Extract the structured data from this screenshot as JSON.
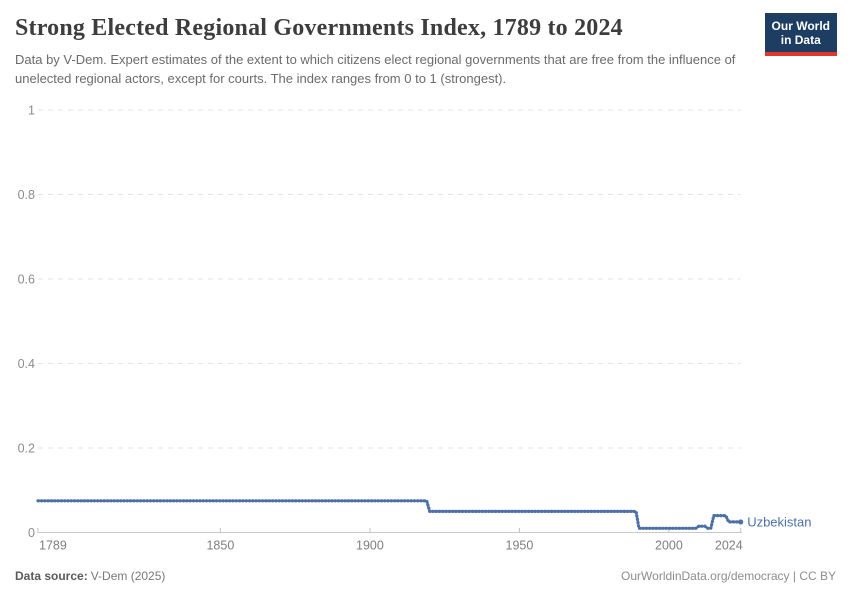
{
  "header": {
    "title": "Strong Elected Regional Governments Index, 1789 to 2024",
    "subtitle": "Data by V-Dem. Expert estimates of the extent to which citizens elect regional governments that are free from the influence of unelected regional actors, except for courts. The index ranges from 0 to 1 (strongest).",
    "logo": {
      "line1": "Our World",
      "line2": "in Data",
      "bg_color": "#1d3d63",
      "bar_color": "#dc3830",
      "text_color": "#ffffff"
    }
  },
  "chart_data": {
    "type": "line",
    "title": "Strong Elected Regional Governments Index, 1789 to 2024",
    "xlabel": "",
    "ylabel": "",
    "xlim": [
      1789,
      2024
    ],
    "ylim": [
      0,
      1
    ],
    "grid": "horizontal dashed",
    "line_style": "dotted",
    "legend_position": "end of line",
    "x_ticks": [
      {
        "v": 1789,
        "label": "1789"
      },
      {
        "v": 1850,
        "label": "1850"
      },
      {
        "v": 1900,
        "label": "1900"
      },
      {
        "v": 1950,
        "label": "1950"
      },
      {
        "v": 2000,
        "label": "2000"
      },
      {
        "v": 2024,
        "label": "2024"
      }
    ],
    "y_ticks": [
      {
        "v": 0,
        "label": "0"
      },
      {
        "v": 0.2,
        "label": "0.2"
      },
      {
        "v": 0.4,
        "label": "0.4"
      },
      {
        "v": 0.6,
        "label": "0.6"
      },
      {
        "v": 0.8,
        "label": "0.8"
      },
      {
        "v": 1,
        "label": "1"
      }
    ],
    "series": [
      {
        "name": "Uzbekistan",
        "color": "#4c6fa8",
        "points": [
          [
            1789,
            0.075
          ],
          [
            1919,
            0.075
          ],
          [
            1920,
            0.05
          ],
          [
            1989,
            0.05
          ],
          [
            1990,
            0.01
          ],
          [
            2009,
            0.01
          ],
          [
            2010,
            0.015
          ],
          [
            2012,
            0.015
          ],
          [
            2013,
            0.01
          ],
          [
            2014,
            0.01
          ],
          [
            2015,
            0.04
          ],
          [
            2019,
            0.04
          ],
          [
            2020,
            0.025
          ],
          [
            2024,
            0.025
          ]
        ]
      }
    ],
    "axis_colors": {
      "gridline": "#e3e3e3",
      "axis_line": "#c9c9c9",
      "tick_mark": "#c2c2c2",
      "y_label": "#8c8c8c",
      "x_label": "#7e7e7e"
    }
  },
  "footer": {
    "source_label": "Data source:",
    "source_value": "V-Dem (2025)",
    "credit": "OurWorldinData.org/democracy | CC BY"
  }
}
